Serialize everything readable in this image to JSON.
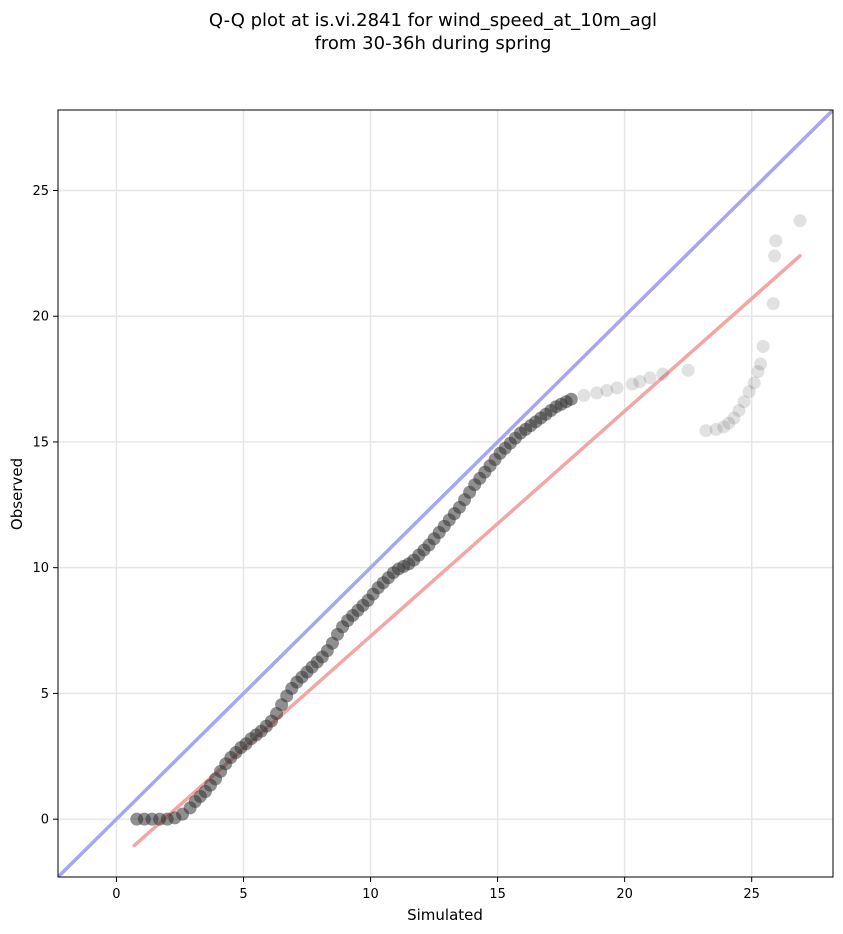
{
  "chart_data": {
    "type": "scatter",
    "title": "Q-Q plot at is.vi.2841 for wind_speed_at_10m_agl",
    "subtitle": "from 30-36h during spring",
    "xlabel": "Simulated",
    "ylabel": "Observed",
    "xlim": [
      -2.3,
      28.2
    ],
    "ylim": [
      -2.3,
      28.2
    ],
    "xticks": [
      0,
      5,
      10,
      15,
      20,
      25
    ],
    "yticks": [
      0,
      5,
      10,
      15,
      20,
      25
    ],
    "grid": true,
    "colors": {
      "points": "#333333",
      "identity_line": "#a6a6f2",
      "fit_line": "#f2a6a6",
      "grid": "#e6e6e6"
    },
    "identity_line": {
      "x": [
        -2.3,
        28.2
      ],
      "y": [
        -2.3,
        28.2
      ]
    },
    "fit_line": {
      "x": [
        0.7,
        26.9
      ],
      "y": [
        -1.05,
        22.4
      ]
    },
    "points": {
      "x": [
        0.8,
        1.1,
        1.4,
        1.7,
        2.0,
        2.3,
        2.6,
        2.9,
        3.1,
        3.3,
        3.5,
        3.7,
        3.9,
        4.1,
        4.3,
        4.5,
        4.7,
        4.9,
        5.1,
        5.3,
        5.5,
        5.7,
        5.9,
        6.1,
        6.3,
        6.5,
        6.7,
        6.9,
        7.1,
        7.3,
        7.5,
        7.7,
        7.9,
        8.1,
        8.3,
        8.5,
        8.7,
        8.9,
        9.1,
        9.3,
        9.5,
        9.7,
        9.9,
        10.1,
        10.3,
        10.5,
        10.7,
        10.9,
        11.1,
        11.3,
        11.5,
        11.7,
        11.9,
        12.1,
        12.3,
        12.5,
        12.7,
        12.9,
        13.1,
        13.3,
        13.5,
        13.7,
        13.9,
        14.1,
        14.3,
        14.5,
        14.7,
        14.9,
        15.1,
        15.3,
        15.5,
        15.7,
        15.9,
        16.1,
        16.3,
        16.5,
        16.7,
        16.9,
        17.1,
        17.3,
        17.5,
        17.7,
        17.9,
        18.4,
        18.9,
        19.3,
        19.7,
        20.3,
        20.6,
        21.0,
        21.5,
        22.5,
        23.2,
        23.6,
        23.9,
        24.1,
        24.3,
        24.5,
        24.7,
        24.9,
        25.1,
        25.25,
        25.35,
        25.45,
        25.85,
        25.9,
        25.95,
        26.9
      ],
      "y": [
        0.0,
        0.0,
        0.0,
        0.0,
        0.0,
        0.05,
        0.2,
        0.45,
        0.7,
        0.9,
        1.1,
        1.35,
        1.6,
        1.9,
        2.2,
        2.45,
        2.65,
        2.85,
        3.0,
        3.2,
        3.35,
        3.5,
        3.7,
        3.9,
        4.2,
        4.55,
        4.9,
        5.2,
        5.45,
        5.65,
        5.85,
        6.05,
        6.25,
        6.45,
        6.7,
        7.0,
        7.35,
        7.65,
        7.9,
        8.1,
        8.3,
        8.5,
        8.7,
        8.95,
        9.2,
        9.4,
        9.6,
        9.8,
        9.95,
        10.05,
        10.15,
        10.3,
        10.5,
        10.7,
        10.9,
        11.15,
        11.4,
        11.65,
        11.9,
        12.15,
        12.4,
        12.7,
        13.0,
        13.3,
        13.55,
        13.8,
        14.05,
        14.3,
        14.55,
        14.75,
        14.95,
        15.15,
        15.35,
        15.5,
        15.65,
        15.8,
        15.95,
        16.1,
        16.25,
        16.4,
        16.5,
        16.6,
        16.7,
        16.85,
        16.95,
        17.05,
        17.15,
        17.3,
        17.4,
        17.55,
        17.7,
        17.85,
        15.45,
        15.5,
        15.6,
        15.75,
        15.95,
        16.25,
        16.6,
        17.0,
        17.35,
        17.8,
        18.1,
        18.8,
        20.5,
        22.4,
        23.0,
        23.8
      ]
    }
  }
}
